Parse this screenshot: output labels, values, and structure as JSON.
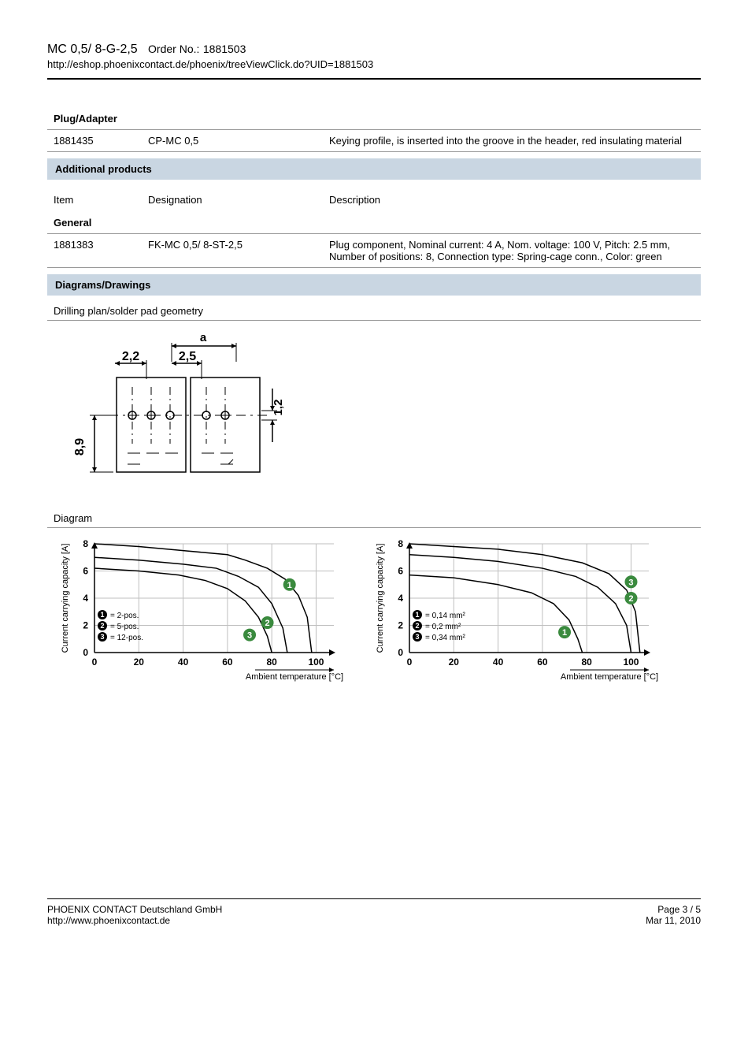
{
  "header": {
    "product_name": "MC 0,5/ 8-G-2,5",
    "order_label": "Order No.:",
    "order_no": "1881503",
    "url": "http://eshop.phoenixcontact.de/phoenix/treeViewClick.do?UID=1881503"
  },
  "plug_adapter": {
    "heading": "Plug/Adapter",
    "rows": [
      {
        "item": "1881435",
        "designation": "CP-MC 0,5",
        "description": "Keying profile, is inserted into the groove in the header, red insulating material"
      }
    ]
  },
  "additional": {
    "bar_label": "Additional products",
    "col_item": "Item",
    "col_desig": "Designation",
    "col_desc": "Description",
    "general_label": "General",
    "rows": [
      {
        "item": "1881383",
        "designation": "FK-MC 0,5/ 8-ST-2,5",
        "description": "Plug component, Nominal current: 4 A, Nom. voltage: 100 V, Pitch: 2.5 mm, Number of positions: 8, Connection type: Spring-cage conn., Color: green"
      }
    ]
  },
  "diagrams": {
    "bar_label": "Diagrams/Drawings",
    "drilling_label": "Drilling plan/solder pad geometry",
    "diagram_label": "Diagram",
    "drilling": {
      "a_label": "a",
      "dim_2_2": "2,2",
      "dim_2_5": "2,5",
      "dim_1_2": "1,2",
      "dim_8_9": "8,9"
    },
    "chart_common": {
      "y_label": "Current carrying capacity [A]",
      "x_label": "Ambient temperature [°C]",
      "y_ticks": [
        "0",
        "2",
        "4",
        "6",
        "8"
      ],
      "x_ticks": [
        "0",
        "20",
        "40",
        "60",
        "80",
        "100"
      ],
      "grid_color": "#bfbfbf",
      "axis_color": "#000000",
      "curve_color": "#000000",
      "marker_fill": "#3a8a3e",
      "bg": "#ffffff"
    },
    "chart1": {
      "legend1": "= 2-pos.",
      "legend2": "= 5-pos.",
      "legend3": "= 12-pos.",
      "curves": [
        [
          [
            0,
            8.0
          ],
          [
            20,
            7.8
          ],
          [
            40,
            7.5
          ],
          [
            60,
            7.2
          ],
          [
            68,
            6.8
          ],
          [
            78,
            6.2
          ],
          [
            86,
            5.4
          ],
          [
            92,
            4.2
          ],
          [
            96,
            2.6
          ],
          [
            98,
            0
          ]
        ],
        [
          [
            0,
            7.0
          ],
          [
            20,
            6.8
          ],
          [
            40,
            6.5
          ],
          [
            55,
            6.2
          ],
          [
            65,
            5.6
          ],
          [
            74,
            4.8
          ],
          [
            80,
            3.6
          ],
          [
            85,
            1.8
          ],
          [
            87,
            0
          ]
        ],
        [
          [
            0,
            6.2
          ],
          [
            20,
            6.0
          ],
          [
            38,
            5.7
          ],
          [
            50,
            5.3
          ],
          [
            60,
            4.7
          ],
          [
            68,
            3.8
          ],
          [
            74,
            2.6
          ],
          [
            78,
            1.2
          ],
          [
            80,
            0
          ]
        ]
      ],
      "marker_pos": [
        [
          88,
          5.0
        ],
        [
          78,
          2.2
        ],
        [
          70,
          1.3
        ]
      ]
    },
    "chart2": {
      "legend1": "= 0,14 mm²",
      "legend2": "= 0,2 mm²",
      "legend3": "= 0,34 mm²",
      "curves": [
        [
          [
            0,
            5.7
          ],
          [
            20,
            5.5
          ],
          [
            40,
            5.0
          ],
          [
            55,
            4.4
          ],
          [
            65,
            3.6
          ],
          [
            72,
            2.4
          ],
          [
            76,
            1.0
          ],
          [
            78,
            0
          ]
        ],
        [
          [
            0,
            7.2
          ],
          [
            20,
            7.0
          ],
          [
            40,
            6.7
          ],
          [
            60,
            6.2
          ],
          [
            75,
            5.6
          ],
          [
            85,
            4.8
          ],
          [
            93,
            3.6
          ],
          [
            98,
            2.0
          ],
          [
            100,
            0
          ]
        ],
        [
          [
            0,
            8.0
          ],
          [
            20,
            7.8
          ],
          [
            40,
            7.6
          ],
          [
            60,
            7.2
          ],
          [
            78,
            6.6
          ],
          [
            90,
            5.8
          ],
          [
            98,
            4.6
          ],
          [
            102,
            3.0
          ],
          [
            104,
            0
          ]
        ]
      ],
      "marker_pos": [
        [
          70,
          1.5
        ],
        [
          100,
          4.0
        ],
        [
          100,
          5.2
        ]
      ]
    }
  },
  "footer": {
    "company": "PHOENIX CONTACT Deutschland GmbH",
    "site": "http://www.phoenixcontact.de",
    "page": "Page 3 / 5",
    "date": "Mar 11, 2010"
  }
}
